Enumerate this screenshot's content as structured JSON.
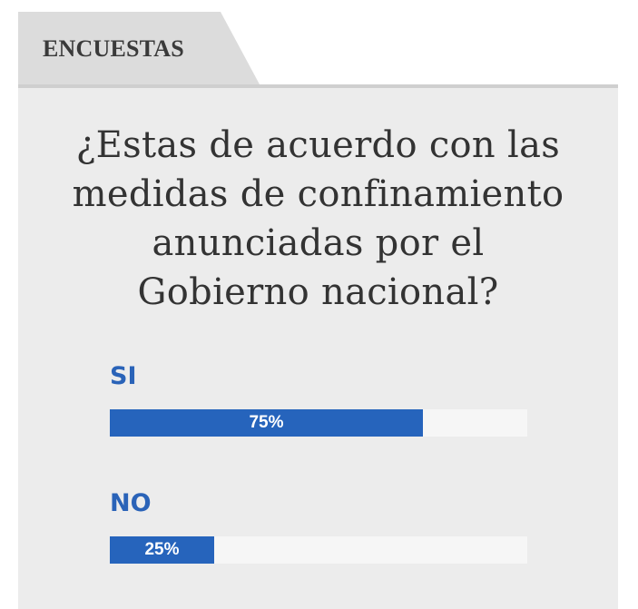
{
  "header": {
    "tab_label": "ENCUESTAS"
  },
  "poll": {
    "question_lines": [
      "¿Estas de acuerdo con las",
      "medidas de confinamiento",
      "anunciadas por el",
      "Gobierno nacional?"
    ],
    "options": [
      {
        "label": "SI",
        "percent": 75,
        "percent_text": "75%"
      },
      {
        "label": "NO",
        "percent": 25,
        "percent_text": "25%"
      }
    ]
  },
  "colors": {
    "accent": "#2664bc",
    "label_blue": "#2a63b8",
    "panel_bg": "#ececec",
    "tab_bg": "#dcdcdc",
    "track_bg": "#f6f6f6"
  }
}
